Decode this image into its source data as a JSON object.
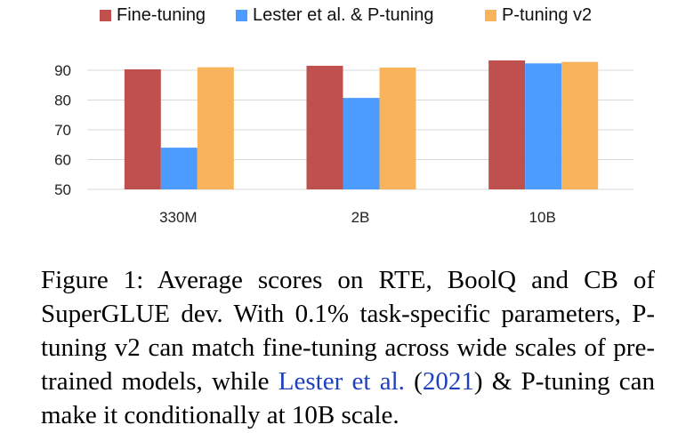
{
  "colors": {
    "fine_tuning": "#C0504D",
    "lester": "#4C9BFF",
    "ptuning_v2": "#F9B35A",
    "grid": "#D9D9D9",
    "axis_text": "#222222",
    "citation": "#1F3FBF"
  },
  "chart_data": {
    "type": "bar",
    "categories": [
      "330M",
      "2B",
      "10B"
    ],
    "series": [
      {
        "name": "Fine-tuning",
        "values": [
          90.3,
          91.5,
          93.3
        ]
      },
      {
        "name": "Lester et al. & P-tuning",
        "values": [
          64.0,
          80.7,
          92.3
        ]
      },
      {
        "name": "P-tuning v2",
        "values": [
          91.0,
          90.9,
          92.8
        ]
      }
    ],
    "yticks": [
      50,
      60,
      70,
      80,
      90
    ],
    "ylim": [
      50,
      95
    ],
    "grid": true,
    "legend": "top"
  },
  "caption": {
    "lead": "Figure 1: Average scores on RTE, BoolQ and CB of SuperGLUE dev. With 0.1% task-specific parameters, P-tuning v2 can match fine-tuning across wide scales of pre-trained models, while",
    "cite_name": "Lester et al.",
    "cite_open": "(",
    "cite_year": "2021",
    "cite_close": ")",
    "tail": "& P-tuning can make it conditionally at 10B scale."
  }
}
